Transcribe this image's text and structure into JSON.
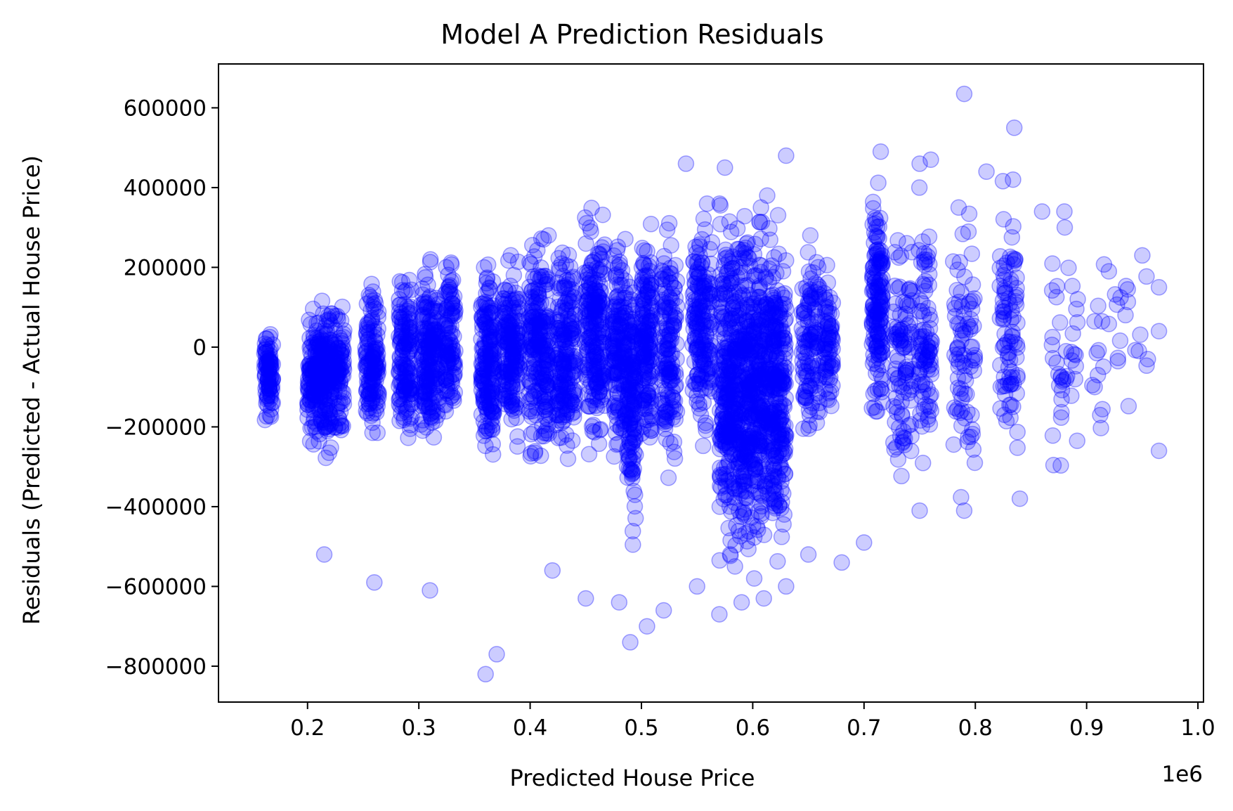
{
  "chart_data": {
    "type": "scatter",
    "title": "Model A Prediction Residuals",
    "xlabel": "Predicted House Price",
    "ylabel": "Residuals (Predicted - Actual House Price)",
    "x_offset_label": "1e6",
    "xlim": [
      120000,
      1005000
    ],
    "ylim": [
      -890000,
      710000
    ],
    "x_ticks": [
      200000,
      300000,
      400000,
      500000,
      600000,
      700000,
      800000,
      900000,
      1000000
    ],
    "x_tick_labels": [
      "0.2",
      "0.3",
      "0.4",
      "0.5",
      "0.6",
      "0.7",
      "0.8",
      "0.9",
      "1.0"
    ],
    "y_ticks": [
      600000,
      400000,
      200000,
      0,
      -200000,
      -400000,
      -600000,
      -800000
    ],
    "y_tick_labels": [
      "600000",
      "400000",
      "200000",
      "0",
      "−200000",
      "−400000",
      "−600000",
      "−800000"
    ],
    "grid": false,
    "marker_color": "#0000ff",
    "marker_alpha": 0.2,
    "clusters": [
      {
        "x": 165000,
        "xspread": 4000,
        "ymin": -200000,
        "ymax": 50000,
        "n": 90
      },
      {
        "x": 205000,
        "xspread": 5000,
        "ymin": -250000,
        "ymax": 110000,
        "n": 110
      },
      {
        "x": 216000,
        "xspread": 6000,
        "ymin": -280000,
        "ymax": 140000,
        "n": 150
      },
      {
        "x": 228000,
        "xspread": 5000,
        "ymin": -230000,
        "ymax": 120000,
        "n": 90
      },
      {
        "x": 258000,
        "xspread": 6000,
        "ymin": -250000,
        "ymax": 160000,
        "n": 140
      },
      {
        "x": 288000,
        "xspread": 6000,
        "ymin": -300000,
        "ymax": 200000,
        "n": 150
      },
      {
        "x": 310000,
        "xspread": 8000,
        "ymin": -280000,
        "ymax": 220000,
        "n": 200
      },
      {
        "x": 328000,
        "xspread": 5000,
        "ymin": -200000,
        "ymax": 240000,
        "n": 110
      },
      {
        "x": 362000,
        "xspread": 6000,
        "ymin": -320000,
        "ymax": 250000,
        "n": 180
      },
      {
        "x": 383000,
        "xspread": 8000,
        "ymin": -250000,
        "ymax": 250000,
        "n": 180
      },
      {
        "x": 408000,
        "xspread": 9000,
        "ymin": -320000,
        "ymax": 300000,
        "n": 220
      },
      {
        "x": 432000,
        "xspread": 9000,
        "ymin": -280000,
        "ymax": 280000,
        "n": 200
      },
      {
        "x": 458000,
        "xspread": 9000,
        "ymin": -300000,
        "ymax": 350000,
        "n": 220
      },
      {
        "x": 480000,
        "xspread": 6000,
        "ymin": -300000,
        "ymax": 300000,
        "n": 150
      },
      {
        "x": 491000,
        "xspread": 4000,
        "ymin": -500000,
        "ymax": 250000,
        "n": 150
      },
      {
        "x": 505000,
        "xspread": 5000,
        "ymin": -300000,
        "ymax": 330000,
        "n": 160
      },
      {
        "x": 525000,
        "xspread": 7000,
        "ymin": -350000,
        "ymax": 320000,
        "n": 150
      },
      {
        "x": 555000,
        "xspread": 9000,
        "ymin": -250000,
        "ymax": 360000,
        "n": 180
      },
      {
        "x": 580000,
        "xspread": 10000,
        "ymin": -550000,
        "ymax": 360000,
        "n": 350
      },
      {
        "x": 600000,
        "xspread": 9000,
        "ymin": -580000,
        "ymax": 350000,
        "n": 330
      },
      {
        "x": 620000,
        "xspread": 10000,
        "ymin": -560000,
        "ymax": 380000,
        "n": 330
      },
      {
        "x": 652000,
        "xspread": 8000,
        "ymin": -250000,
        "ymax": 280000,
        "n": 120
      },
      {
        "x": 668000,
        "xspread": 4000,
        "ymin": -200000,
        "ymax": 250000,
        "n": 70
      },
      {
        "x": 712000,
        "xspread": 5000,
        "ymin": -200000,
        "ymax": 430000,
        "n": 160
      },
      {
        "x": 735000,
        "xspread": 9000,
        "ymin": -350000,
        "ymax": 330000,
        "n": 100
      },
      {
        "x": 755000,
        "xspread": 6000,
        "ymin": -320000,
        "ymax": 400000,
        "n": 90
      },
      {
        "x": 790000,
        "xspread": 10000,
        "ymin": -400000,
        "ymax": 380000,
        "n": 80
      },
      {
        "x": 830000,
        "xspread": 8000,
        "ymin": -390000,
        "ymax": 420000,
        "n": 90
      },
      {
        "x": 880000,
        "xspread": 12000,
        "ymin": -350000,
        "ymax": 350000,
        "n": 40
      },
      {
        "x": 930000,
        "xspread": 25000,
        "ymin": -280000,
        "ymax": 240000,
        "n": 30
      }
    ],
    "outliers": [
      [
        360000,
        -820000
      ],
      [
        370000,
        -770000
      ],
      [
        490000,
        -740000
      ],
      [
        505000,
        -700000
      ],
      [
        520000,
        -660000
      ],
      [
        570000,
        -670000
      ],
      [
        590000,
        -640000
      ],
      [
        610000,
        -630000
      ],
      [
        630000,
        -600000
      ],
      [
        790000,
        635000
      ],
      [
        835000,
        550000
      ],
      [
        715000,
        490000
      ],
      [
        630000,
        480000
      ],
      [
        540000,
        460000
      ],
      [
        575000,
        450000
      ],
      [
        260000,
        -590000
      ],
      [
        215000,
        -520000
      ],
      [
        310000,
        -610000
      ],
      [
        420000,
        -560000
      ],
      [
        450000,
        -630000
      ],
      [
        480000,
        -640000
      ],
      [
        550000,
        -600000
      ],
      [
        650000,
        -520000
      ],
      [
        680000,
        -540000
      ],
      [
        700000,
        -490000
      ],
      [
        750000,
        -410000
      ],
      [
        790000,
        -410000
      ],
      [
        840000,
        -380000
      ],
      [
        965000,
        -260000
      ],
      [
        950000,
        230000
      ],
      [
        965000,
        150000
      ],
      [
        965000,
        40000
      ],
      [
        955000,
        -30000
      ],
      [
        920000,
        190000
      ],
      [
        880000,
        340000
      ],
      [
        860000,
        340000
      ],
      [
        810000,
        440000
      ],
      [
        785000,
        350000
      ],
      [
        760000,
        470000
      ],
      [
        750000,
        460000
      ]
    ]
  }
}
